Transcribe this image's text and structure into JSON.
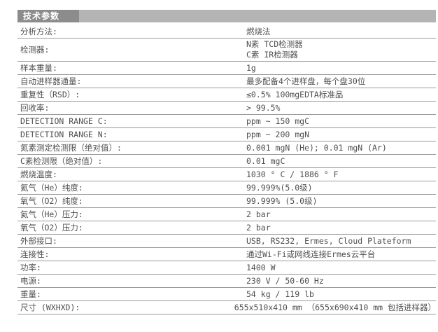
{
  "header": {
    "title": "技术参数"
  },
  "colors": {
    "header_chip_bg": "#8c8c8c",
    "header_bar_bg": "#b4b4b4",
    "header_text": "#ffffff",
    "row_line": "#9a9a9a",
    "text": "#4f4f4f"
  },
  "rows": [
    {
      "label": "分析方法:",
      "values": [
        "燃烧法"
      ]
    },
    {
      "label": "检测器:",
      "values": [
        "N素  TCD检测器",
        "C素  IR检测器"
      ]
    },
    {
      "label": "样本重量:",
      "values": [
        "1g"
      ]
    },
    {
      "label": "自动进样器通量:",
      "values": [
        "最多配备4个进样盘，每个盘30位"
      ]
    },
    {
      "label": "重复性（RSD）:",
      "values": [
        "≤0.5% 100mgEDTA标准品"
      ]
    },
    {
      "label": "回收率:",
      "values": [
        "> 99.5%"
      ]
    },
    {
      "label": "DETECTION RANGE C:",
      "values": [
        "ppm ~ 150 mgC"
      ]
    },
    {
      "label": "DETECTION RANGE N:",
      "values": [
        "ppm ~ 200 mgN"
      ]
    },
    {
      "label": "氮素测定检测限（绝对值）:",
      "values": [
        "0.001 mgN (He); 0.01 mgN (Ar)"
      ]
    },
    {
      "label": "C素检测限（绝对值）:",
      "values": [
        "0.01 mgC"
      ]
    },
    {
      "label": "燃烧温度:",
      "values": [
        "1030 ° C / 1886 ° F"
      ]
    },
    {
      "label": "氦气（He）纯度:",
      "values": [
        "99.999%(5.0级)"
      ]
    },
    {
      "label": "氧气（O2）纯度:",
      "values": [
        "99.999% (5.0级)"
      ]
    },
    {
      "label": "氦气（He）压力:",
      "values": [
        "2 bar"
      ]
    },
    {
      "label": "氧气（O2）压力:",
      "values": [
        "2 bar"
      ]
    },
    {
      "label": "外部接口:",
      "values": [
        "USB, RS232, Ermes, Cloud Plateform"
      ]
    },
    {
      "label": "连接性:",
      "values": [
        "通过Wi-Fi或网线连接Ermes云平台"
      ]
    },
    {
      "label": "功率:",
      "values": [
        "1400 W"
      ]
    },
    {
      "label": "电源:",
      "values": [
        "230 V / 50-60 Hz"
      ]
    },
    {
      "label": "重量:",
      "values": [
        "54 kg / 119 lb"
      ]
    },
    {
      "label": "尺寸 (WXHXD):",
      "values": [
        "655x510x410 mm （655x690x410 mm 包括进样器）"
      ]
    }
  ]
}
